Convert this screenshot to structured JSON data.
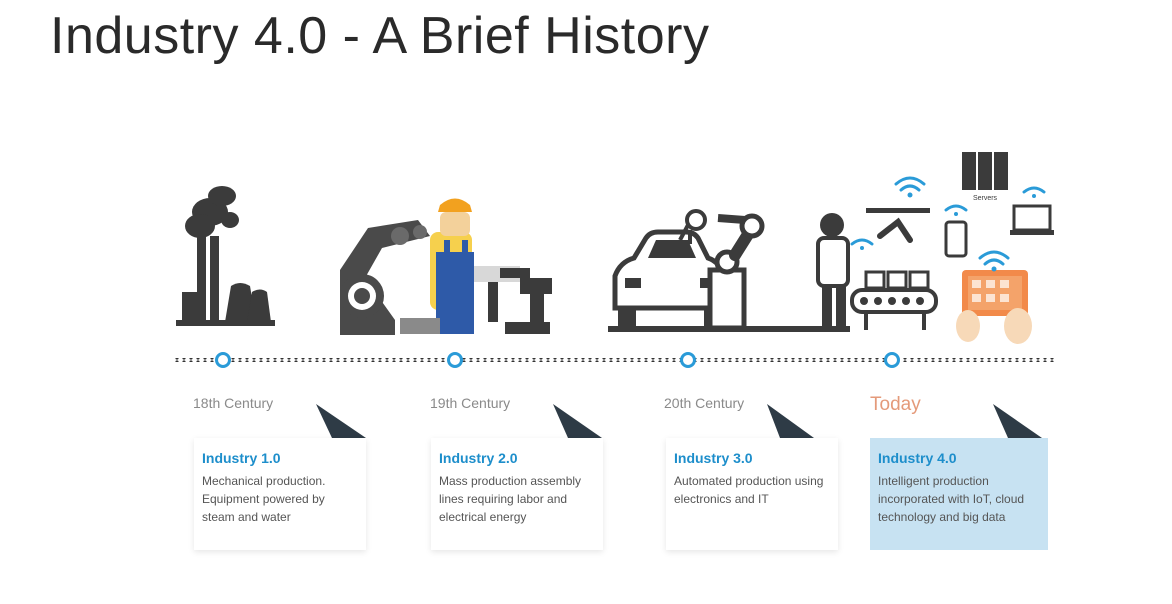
{
  "title": "Industry 4.0 - A Brief History",
  "stages": [
    {
      "era": "18th Century",
      "name": "Industry 1.0",
      "description": "Mechanical production. Equipment powered by steam and water"
    },
    {
      "era": "19th Century",
      "name": "Industry 2.0",
      "description": "Mass production assembly lines requiring labor and electrical energy"
    },
    {
      "era": "20th Century",
      "name": "Industry 3.0",
      "description": "Automated production using electronics and IT"
    },
    {
      "era": "Today",
      "name": "Industry 4.0",
      "description": "Intelligent production incorporated with IoT, cloud technology and big data"
    }
  ],
  "servers_label": "Servers",
  "colors": {
    "accent": "#1d8ecb",
    "today": "#e49a7a",
    "dark": "#3b3b3b",
    "active_card": "#c7e2f2"
  }
}
